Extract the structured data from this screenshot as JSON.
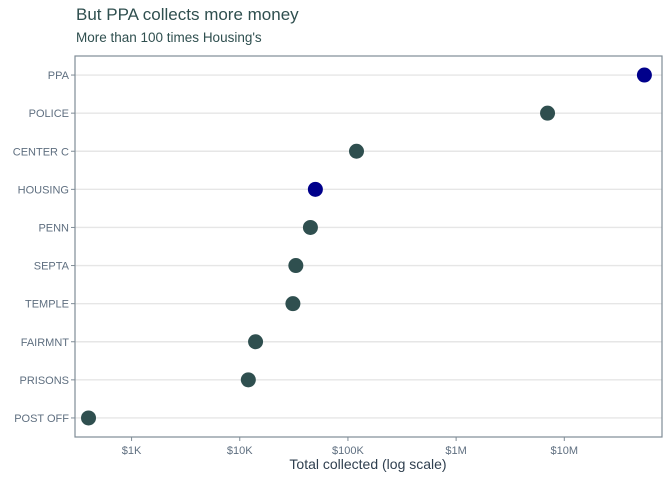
{
  "chart_data": {
    "type": "scatter",
    "title": "But PPA collects more money",
    "subtitle": "More than 100 times Housing's",
    "xlabel": "Total collected (log scale)",
    "xscale": "log10",
    "xlim": [
      300,
      80000000
    ],
    "x_ticks": [
      {
        "value": 1000,
        "label": "$1K"
      },
      {
        "value": 10000,
        "label": "$10K"
      },
      {
        "value": 100000,
        "label": "$100K"
      },
      {
        "value": 1000000,
        "label": "$1M"
      },
      {
        "value": 10000000,
        "label": "$10M"
      }
    ],
    "grid": "horizontal",
    "colors": {
      "default": "#2f4f4f",
      "highlight": "#00008b"
    },
    "points": [
      {
        "category": "PPA",
        "value": 55000000,
        "highlight": true
      },
      {
        "category": "POLICE",
        "value": 7000000,
        "highlight": false
      },
      {
        "category": "CENTER C",
        "value": 120000,
        "highlight": false
      },
      {
        "category": "HOUSING",
        "value": 50000,
        "highlight": true
      },
      {
        "category": "PENN",
        "value": 45000,
        "highlight": false
      },
      {
        "category": "SEPTA",
        "value": 33000,
        "highlight": false
      },
      {
        "category": "TEMPLE",
        "value": 31000,
        "highlight": false
      },
      {
        "category": "FAIRMNT",
        "value": 14000,
        "highlight": false
      },
      {
        "category": "PRISONS",
        "value": 12000,
        "highlight": false
      },
      {
        "category": "POST OFF",
        "value": 400,
        "highlight": false
      }
    ]
  }
}
